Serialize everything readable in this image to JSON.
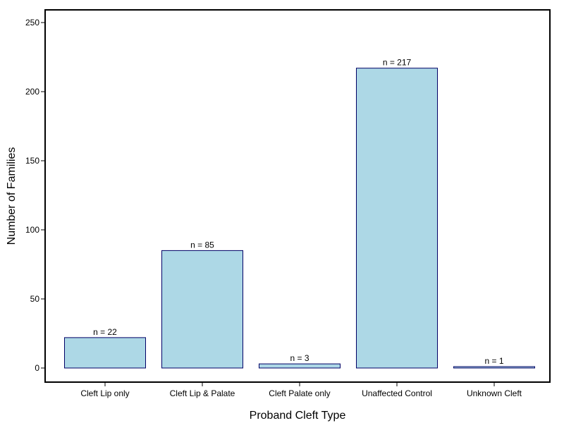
{
  "chart_data": {
    "type": "bar",
    "title": "",
    "xlabel": "Proband Cleft Type",
    "ylabel": "Number of Families",
    "categories": [
      "Cleft Lip only",
      "Cleft Lip & Palate",
      "Cleft Palate only",
      "Unaffected Control",
      "Unknown Cleft"
    ],
    "values": [
      22,
      85,
      3,
      217,
      1
    ],
    "data_labels": [
      "n =  22",
      "n =  85",
      "n =  3",
      "n =  217",
      "n =  1"
    ],
    "yticks": [
      0,
      50,
      100,
      150,
      200,
      250
    ],
    "ylim": [
      0,
      260
    ],
    "grid": false,
    "legend": "none",
    "colors": {
      "bar_fill": "#add8e6",
      "bar_stroke": "#000066",
      "frame": "#000000"
    }
  }
}
